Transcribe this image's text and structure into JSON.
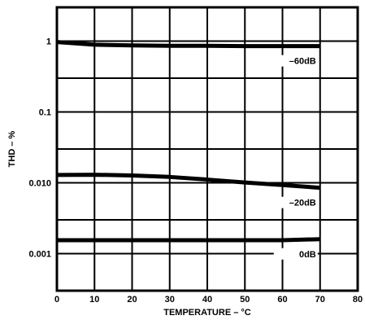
{
  "chart_data": {
    "type": "line",
    "title": "",
    "xlabel": "TEMPERATURE – °C",
    "ylabel": "THD – %",
    "xlim": [
      0,
      80
    ],
    "ylim": [
      0.0003,
      3
    ],
    "yscale": "log",
    "grid": true,
    "x_ticks": [
      0,
      10,
      20,
      30,
      40,
      50,
      60,
      70,
      80
    ],
    "x_tick_labels": [
      "0",
      "10",
      "20",
      "30",
      "40",
      "50",
      "60",
      "70",
      "80"
    ],
    "y_ticks": [
      1,
      0.1,
      0.01,
      0.001
    ],
    "y_tick_labels": [
      "1",
      "0.1",
      "0.010",
      "0.001"
    ],
    "series": [
      {
        "name": "–60dB",
        "x": [
          0,
          10,
          20,
          30,
          40,
          50,
          60,
          70
        ],
        "y": [
          0.97,
          0.89,
          0.87,
          0.86,
          0.86,
          0.85,
          0.85,
          0.85
        ]
      },
      {
        "name": "–20dB",
        "x": [
          0,
          10,
          20,
          30,
          40,
          50,
          60,
          70
        ],
        "y": [
          0.0129,
          0.013,
          0.0127,
          0.0121,
          0.0111,
          0.0101,
          0.0093,
          0.0085
        ]
      },
      {
        "name": "0dB",
        "x": [
          0,
          10,
          20,
          30,
          40,
          50,
          60,
          70
        ],
        "y": [
          0.00155,
          0.00155,
          0.00155,
          0.00155,
          0.00155,
          0.00155,
          0.00155,
          0.0016
        ]
      }
    ]
  }
}
